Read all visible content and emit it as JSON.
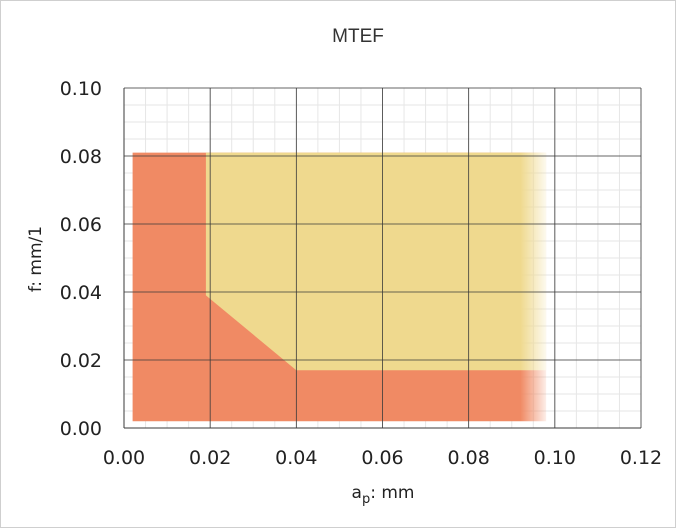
{
  "chart_data": {
    "type": "area",
    "title": "MTEF",
    "xlabel": {
      "base": "a",
      "sub": "p",
      "suffix": ": mm"
    },
    "ylabel": "f: mm/1",
    "xlim": [
      0.0,
      0.12
    ],
    "ylim": [
      0.0,
      0.1
    ],
    "x_ticks": [
      "0.00",
      "0.02",
      "0.04",
      "0.06",
      "0.08",
      "0.10",
      "0.12"
    ],
    "y_ticks": [
      "0.00",
      "0.02",
      "0.04",
      "0.06",
      "0.08",
      "0.10"
    ],
    "grid": true,
    "regions": [
      {
        "color": "#f08a64",
        "polygon": [
          [
            0.002,
            0.002
          ],
          [
            0.098,
            0.002
          ],
          [
            0.098,
            0.081
          ],
          [
            0.002,
            0.081
          ]
        ]
      },
      {
        "color": "#efd98e",
        "polygon": [
          [
            0.019,
            0.081
          ],
          [
            0.098,
            0.081
          ],
          [
            0.098,
            0.017
          ],
          [
            0.04,
            0.017
          ],
          [
            0.019,
            0.039
          ]
        ]
      }
    ]
  }
}
